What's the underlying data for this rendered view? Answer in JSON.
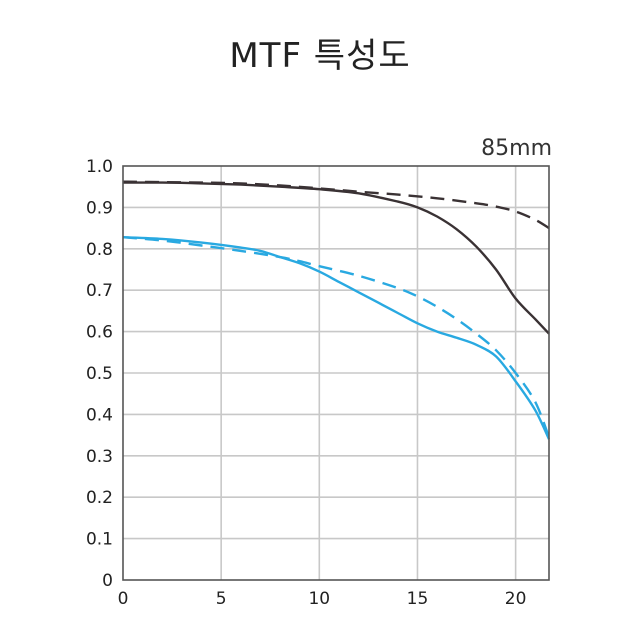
{
  "title": "MTF 특성도",
  "chart_data": {
    "type": "line",
    "title": "MTF 특성도",
    "annotation": "85mm",
    "xlabel": "",
    "ylabel": "",
    "xlim": [
      0,
      21.7
    ],
    "ylim": [
      0,
      1.0
    ],
    "xticks": [
      0,
      5,
      10,
      15,
      20
    ],
    "xtick_labels": [
      "0",
      "5",
      "10",
      "15",
      "20"
    ],
    "yticks": [
      0,
      0.1,
      0.2,
      0.3,
      0.4,
      0.5,
      0.6,
      0.7,
      0.8,
      0.9,
      1.0
    ],
    "ytick_labels": [
      "0",
      "0.1",
      "0.2",
      "0.3",
      "0.4",
      "0.5",
      "0.6",
      "0.7",
      "0.8",
      "0.9",
      "1.0"
    ],
    "grid": true,
    "colors": {
      "dark": "#3a3234",
      "blue": "#29a9e1",
      "grid": "#c8c8c8",
      "axis": "#555555"
    },
    "series": [
      {
        "color": "#3a3234",
        "style": "solid",
        "x": [
          0,
          2,
          4,
          6,
          8,
          10,
          12,
          14,
          15,
          16,
          17,
          18,
          19,
          20,
          21,
          21.7
        ],
        "y": [
          0.96,
          0.96,
          0.958,
          0.955,
          0.95,
          0.944,
          0.934,
          0.914,
          0.9,
          0.878,
          0.847,
          0.805,
          0.75,
          0.68,
          0.63,
          0.595
        ]
      },
      {
        "color": "#3a3234",
        "style": "dashed",
        "x": [
          0,
          2,
          4,
          6,
          8,
          10,
          12,
          14,
          16,
          18,
          19,
          20,
          21,
          21.7
        ],
        "y": [
          0.962,
          0.961,
          0.96,
          0.958,
          0.953,
          0.946,
          0.938,
          0.931,
          0.922,
          0.91,
          0.902,
          0.89,
          0.87,
          0.85
        ]
      },
      {
        "color": "#29a9e1",
        "style": "solid",
        "x": [
          0,
          2,
          4,
          6,
          7,
          8,
          9,
          10,
          11,
          12,
          13,
          14,
          15,
          16,
          17,
          18,
          19,
          20,
          21,
          21.7
        ],
        "y": [
          0.828,
          0.824,
          0.815,
          0.803,
          0.795,
          0.78,
          0.765,
          0.745,
          0.72,
          0.695,
          0.67,
          0.645,
          0.62,
          0.6,
          0.585,
          0.568,
          0.54,
          0.48,
          0.41,
          0.34
        ]
      },
      {
        "color": "#29a9e1",
        "style": "dashed",
        "x": [
          0,
          2,
          4,
          6,
          8,
          9,
          10,
          12,
          14,
          15,
          16,
          17,
          18,
          19,
          20,
          21,
          21.7
        ],
        "y": [
          0.828,
          0.82,
          0.808,
          0.795,
          0.78,
          0.77,
          0.758,
          0.735,
          0.705,
          0.685,
          0.66,
          0.63,
          0.595,
          0.555,
          0.5,
          0.43,
          0.345
        ]
      }
    ]
  }
}
